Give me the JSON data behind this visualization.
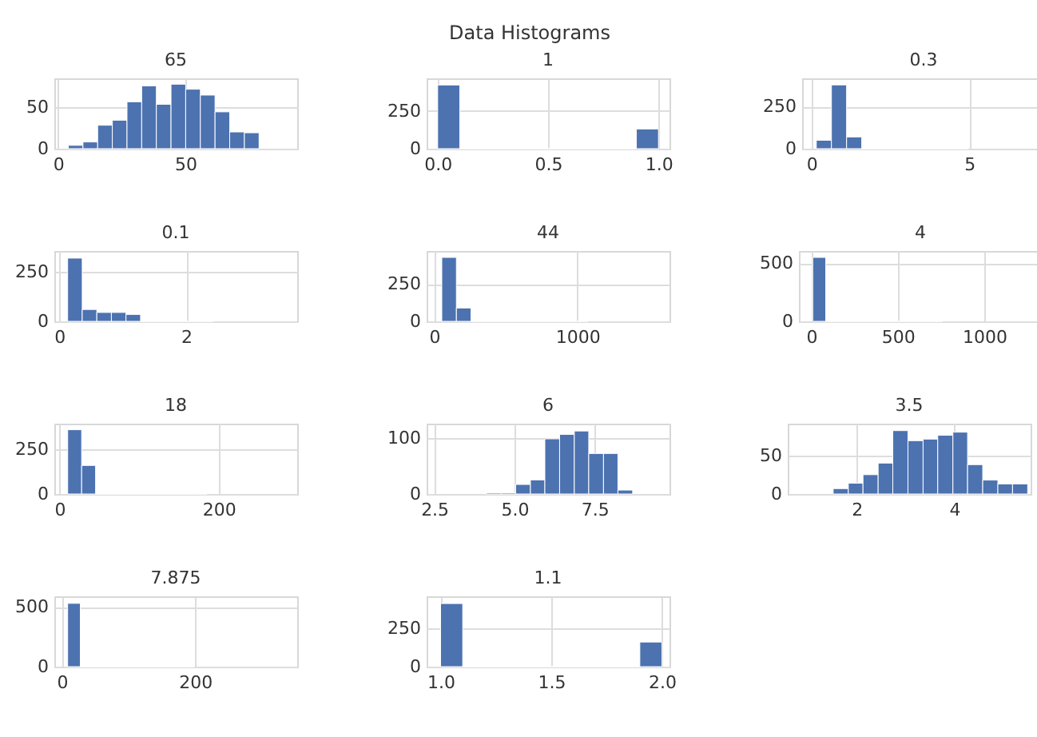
{
  "chart_data": [
    {
      "type": "histogram",
      "title": "65",
      "annotations": [
        "Data Histograms"
      ],
      "color": "#4c72b0",
      "grid": true,
      "xlim": [
        -1.5,
        94
      ],
      "xticks": [
        0,
        50
      ],
      "ylim": [
        0,
        84
      ],
      "yticks": [
        0,
        50
      ],
      "bins": [
        4,
        9.77,
        15.54,
        21.31,
        27.08,
        32.85,
        38.62,
        44.38,
        50.15,
        55.92,
        61.69,
        67.46,
        73.23,
        79
      ],
      "values": [
        4,
        8,
        28,
        34,
        56,
        75,
        53,
        77,
        71,
        64,
        44,
        20,
        19
      ]
    },
    {
      "type": "histogram",
      "title": "1",
      "color": "#4c72b0",
      "grid": true,
      "xlim": [
        -0.05,
        1.05
      ],
      "xticks": [
        {
          "value": 0,
          "label": "0.0"
        },
        0.5,
        {
          "value": 1,
          "label": "1.0"
        }
      ],
      "ylim": [
        0,
        464
      ],
      "yticks": [
        0,
        250
      ],
      "bins": [
        0,
        0.1,
        0.2,
        0.3,
        0.4,
        0.5,
        0.6,
        0.7,
        0.8,
        0.9,
        1
      ],
      "values": [
        420,
        0,
        0,
        0,
        0,
        0,
        0,
        0,
        0,
        130
      ]
    },
    {
      "type": "histogram",
      "title": "0.3",
      "color": "#4c72b0",
      "grid": true,
      "xlim": [
        -0.3,
        7.4
      ],
      "xticks": [
        0,
        5
      ],
      "ylim": [
        0,
        419
      ],
      "yticks": [
        0,
        250
      ],
      "bins": [
        0.15,
        0.63,
        1.11,
        1.59,
        2.07,
        2.55,
        3.03,
        3.51,
        3.99,
        4.47,
        4.95
      ],
      "values": [
        50,
        380,
        70,
        0,
        0,
        0,
        0,
        0,
        0,
        0
      ]
    },
    {
      "type": "histogram",
      "title": "0.1",
      "color": "#4c72b0",
      "grid": true,
      "xlim": [
        -0.08,
        3.75
      ],
      "xticks": [
        0,
        2
      ],
      "ylim": [
        0,
        356
      ],
      "yticks": [
        0,
        250
      ],
      "bins": [
        0.13,
        0.36,
        0.59,
        0.82,
        1.05,
        1.28,
        1.51,
        1.74,
        1.97,
        2.2,
        2.43
      ],
      "values": [
        320,
        60,
        45,
        45,
        35,
        0,
        0,
        0,
        0,
        0
      ]
    },
    {
      "type": "histogram",
      "title": "44",
      "color": "#4c72b0",
      "grid": true,
      "xlim": [
        -53,
        1644
      ],
      "xticks": [
        0,
        1000
      ],
      "ylim": [
        0,
        473
      ],
      "yticks": [
        0,
        250
      ],
      "bins": [
        53,
        155,
        257,
        359,
        461,
        563,
        665,
        767,
        869,
        971,
        1073
      ],
      "values": [
        430,
        90,
        0,
        0,
        0,
        0,
        0,
        0,
        0,
        0
      ]
    },
    {
      "type": "histogram",
      "title": "4",
      "color": "#4c72b0",
      "grid": true,
      "xlim": [
        -72,
        1332
      ],
      "xticks": [
        0,
        500,
        1000
      ],
      "ylim": [
        0,
        605
      ],
      "yticks": [
        0,
        500
      ],
      "bins": [
        8,
        83,
        158,
        233,
        308,
        383,
        458,
        533,
        608,
        683,
        758
      ],
      "values": [
        550,
        0,
        0,
        0,
        0,
        0,
        0,
        0,
        0,
        0
      ]
    },
    {
      "type": "histogram",
      "title": "18",
      "color": "#4c72b0",
      "grid": true,
      "xlim": [
        -6.4,
        298.6
      ],
      "xticks": [
        0,
        200
      ],
      "ylim": [
        0,
        394
      ],
      "yticks": [
        0,
        250
      ],
      "bins": [
        10.4,
        27.9,
        45.4,
        62.9,
        80.4,
        97.9,
        115.4,
        132.9,
        150.4,
        167.9,
        185.4
      ],
      "values": [
        360,
        160,
        0,
        0,
        0,
        0,
        0,
        0,
        0,
        0
      ]
    },
    {
      "type": "histogram",
      "title": "6",
      "color": "#4c72b0",
      "grid": true,
      "xlim": [
        2.26,
        9.84
      ],
      "xticks": [
        2.5,
        {
          "value": 5,
          "label": "5.0"
        },
        7.5
      ],
      "ylim": [
        0,
        125
      ],
      "yticks": [
        0,
        100
      ],
      "bins": [
        4.13,
        4.59,
        5.04,
        5.5,
        5.95,
        6.41,
        6.87,
        7.32,
        7.78,
        8.23,
        8.69
      ],
      "values": [
        2,
        2,
        17,
        25,
        98,
        106,
        112,
        72,
        72,
        7
      ]
    },
    {
      "type": "histogram",
      "title": "3.5",
      "color": "#4c72b0",
      "grid": true,
      "xlim": [
        0.59,
        5.56
      ],
      "xticks": [
        2,
        4
      ],
      "ylim": [
        0,
        91
      ],
      "yticks": [
        0,
        50
      ],
      "bins": [
        1.52,
        1.83,
        2.13,
        2.44,
        2.74,
        3.05,
        3.36,
        3.66,
        3.97,
        4.27,
        4.58,
        4.89,
        5.19,
        5.5
      ],
      "values": [
        7,
        14,
        25,
        40,
        82,
        69,
        71,
        76,
        80,
        38,
        18,
        13,
        13
      ]
    },
    {
      "type": "histogram",
      "title": "7.875",
      "color": "#4c72b0",
      "grid": true,
      "xlim": [
        -11.4,
        353
      ],
      "xticks": [
        0,
        200
      ],
      "ylim": [
        0,
        589
      ],
      "yticks": [
        0,
        500
      ],
      "bins": [
        8.6,
        27.6,
        46.6,
        65.6,
        84.6,
        103.6,
        122.6,
        141.6,
        160.6,
        179.6,
        198.6
      ],
      "values": [
        530,
        0,
        0,
        0,
        0,
        0,
        0,
        0,
        0,
        0
      ]
    },
    {
      "type": "histogram",
      "title": "1.1",
      "color": "#4c72b0",
      "grid": true,
      "xlim": [
        0.937,
        2.034
      ],
      "xticks": [
        {
          "value": 1,
          "label": "1.0"
        },
        1.5,
        {
          "value": 2,
          "label": "2.0"
        }
      ],
      "ylim": [
        0,
        457
      ],
      "yticks": [
        0,
        250
      ],
      "bins": [
        1,
        1.1,
        1.2,
        1.3,
        1.4,
        1.5,
        1.6,
        1.7,
        1.8,
        1.9,
        2
      ],
      "values": [
        410,
        0,
        0,
        0,
        0,
        0,
        0,
        0,
        0,
        160
      ]
    }
  ]
}
